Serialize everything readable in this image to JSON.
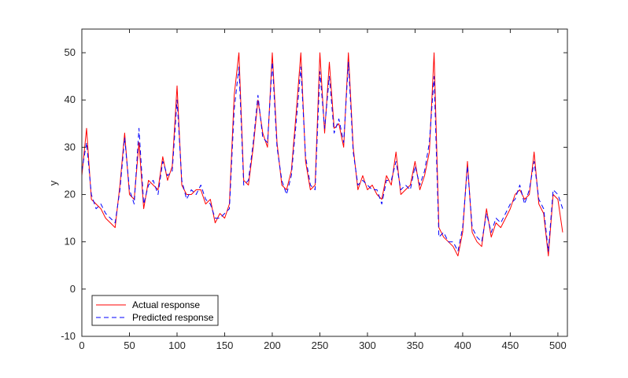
{
  "chart_data": {
    "type": "line",
    "title": "",
    "xlabel": "",
    "ylabel": "y",
    "xlim": [
      0,
      510
    ],
    "ylim": [
      -10,
      55
    ],
    "xticks": [
      0,
      50,
      100,
      150,
      200,
      250,
      300,
      350,
      400,
      450,
      500
    ],
    "yticks": [
      -10,
      0,
      10,
      20,
      30,
      40,
      50
    ],
    "grid": false,
    "legend_position": "bottom-left",
    "x": [
      0,
      5,
      10,
      15,
      20,
      25,
      30,
      35,
      40,
      45,
      50,
      55,
      60,
      65,
      70,
      75,
      80,
      85,
      90,
      95,
      100,
      105,
      110,
      115,
      120,
      125,
      130,
      135,
      140,
      145,
      150,
      155,
      160,
      165,
      170,
      175,
      180,
      185,
      190,
      195,
      200,
      205,
      210,
      215,
      220,
      225,
      230,
      235,
      240,
      245,
      250,
      255,
      260,
      265,
      270,
      275,
      280,
      285,
      290,
      295,
      300,
      305,
      310,
      315,
      320,
      325,
      330,
      335,
      340,
      345,
      350,
      355,
      360,
      365,
      370,
      375,
      380,
      385,
      390,
      395,
      400,
      405,
      410,
      415,
      420,
      425,
      430,
      435,
      440,
      445,
      450,
      455,
      460,
      465,
      470,
      475,
      480,
      485,
      490,
      495,
      500,
      505
    ],
    "series": [
      {
        "name": "Actual response",
        "color": "#ff0000",
        "style": "solid",
        "values": [
          24,
          34,
          19,
          18,
          17,
          15,
          14,
          13,
          22,
          33,
          20,
          19,
          31,
          17,
          23,
          22,
          21,
          28,
          23,
          26,
          43,
          22,
          20,
          20,
          21,
          21,
          18,
          19,
          14,
          16,
          15,
          18,
          41,
          50,
          23,
          22,
          30,
          40,
          33,
          30,
          50,
          31,
          22,
          21,
          25,
          37,
          50,
          27,
          21,
          22,
          50,
          33,
          48,
          34,
          35,
          30,
          50,
          30,
          21,
          24,
          21,
          22,
          20,
          19,
          24,
          22,
          29,
          20,
          21,
          22,
          27,
          21,
          24,
          29,
          50,
          13,
          11,
          10,
          9,
          7,
          12,
          27,
          12,
          10,
          9,
          17,
          11,
          14,
          13,
          15,
          17,
          20,
          21,
          19,
          20,
          29,
          18,
          16,
          7,
          20,
          19,
          12
        ]
      },
      {
        "name": "Predicted response",
        "color": "#0000ff",
        "style": "dashed",
        "values": [
          25,
          31,
          20,
          17,
          18,
          16,
          15,
          14,
          21,
          32,
          21,
          18,
          34,
          18,
          22,
          23,
          20,
          27,
          24,
          25,
          40,
          23,
          19,
          21,
          20,
          22,
          19,
          18,
          15,
          15,
          16,
          17,
          38,
          47,
          22,
          23,
          31,
          41,
          32,
          31,
          48,
          30,
          23,
          20,
          24,
          35,
          47,
          28,
          22,
          21,
          46,
          34,
          45,
          33,
          36,
          31,
          48,
          29,
          22,
          23,
          22,
          21,
          21,
          18,
          23,
          23,
          27,
          21,
          22,
          21,
          26,
          22,
          25,
          31,
          45,
          11,
          12,
          10,
          10,
          8,
          13,
          26,
          13,
          11,
          10,
          16,
          12,
          15,
          14,
          16,
          18,
          19,
          22,
          18,
          21,
          27,
          19,
          17,
          8,
          21,
          20,
          17
        ]
      }
    ]
  }
}
